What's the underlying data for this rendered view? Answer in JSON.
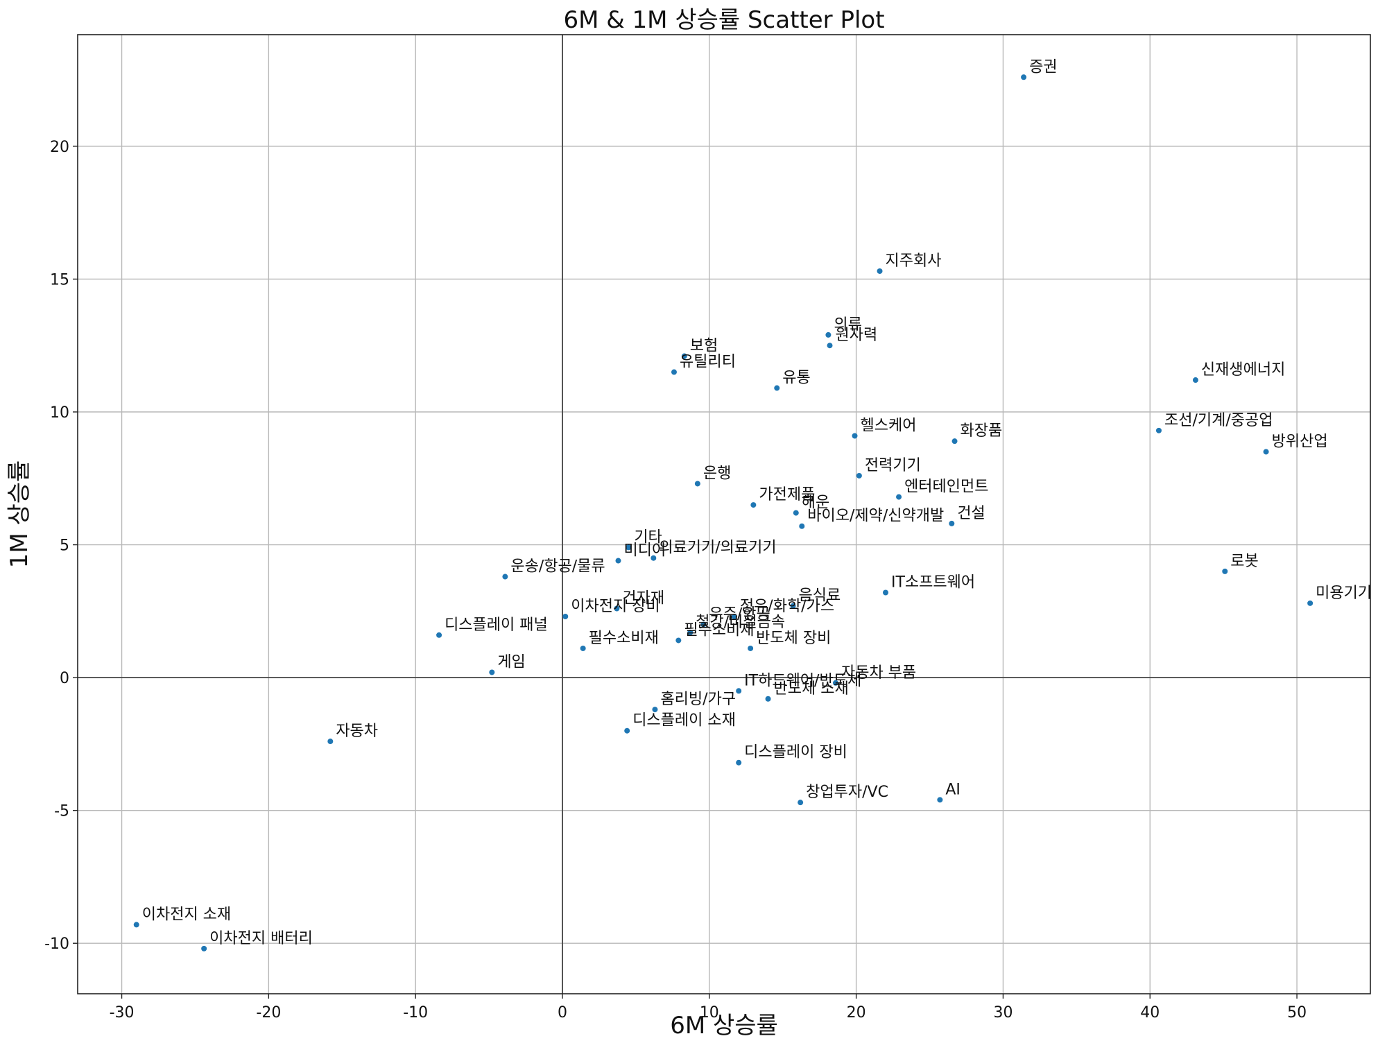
{
  "chart_data": {
    "type": "scatter",
    "title": "6M & 1M 상승률 Scatter Plot",
    "xlabel": "6M 상승률",
    "ylabel": "1M 상승률",
    "xlim": [
      -33,
      55
    ],
    "ylim": [
      -11.9,
      24.2
    ],
    "xticks": [
      -30,
      -20,
      -10,
      0,
      10,
      20,
      30,
      40,
      50
    ],
    "yticks": [
      -10,
      -5,
      0,
      5,
      10,
      15,
      20
    ],
    "grid": true,
    "reference_lines": {
      "x": 0,
      "y": 0
    },
    "point_color": "#1f77b4",
    "points": [
      {
        "label": "증권",
        "x": 31.4,
        "y": 22.6
      },
      {
        "label": "지주회사",
        "x": 21.6,
        "y": 15.3
      },
      {
        "label": "의류",
        "x": 18.1,
        "y": 12.9
      },
      {
        "label": "원자력",
        "x": 18.2,
        "y": 12.5
      },
      {
        "label": "보험",
        "x": 8.3,
        "y": 12.1
      },
      {
        "label": "유틸리티",
        "x": 7.6,
        "y": 11.5
      },
      {
        "label": "유통",
        "x": 14.6,
        "y": 10.9
      },
      {
        "label": "신재생에너지",
        "x": 43.1,
        "y": 11.2
      },
      {
        "label": "헬스케어",
        "x": 19.9,
        "y": 9.1
      },
      {
        "label": "화장품",
        "x": 26.7,
        "y": 8.9
      },
      {
        "label": "조선/기계/중공업",
        "x": 40.6,
        "y": 9.3
      },
      {
        "label": "방위산업",
        "x": 47.9,
        "y": 8.5
      },
      {
        "label": "전력기기",
        "x": 20.2,
        "y": 7.6
      },
      {
        "label": "은행",
        "x": 9.2,
        "y": 7.3
      },
      {
        "label": "엔터테인먼트",
        "x": 22.9,
        "y": 6.8
      },
      {
        "label": "가전제품",
        "x": 13.0,
        "y": 6.5
      },
      {
        "label": "해운",
        "x": 15.9,
        "y": 6.2
      },
      {
        "label": "바이오/제약/신약개발",
        "x": 16.3,
        "y": 5.7
      },
      {
        "label": "건설",
        "x": 26.5,
        "y": 5.8
      },
      {
        "label": "기타",
        "x": 4.5,
        "y": 4.9
      },
      {
        "label": "의료기기/의료기기",
        "x": 6.2,
        "y": 4.5
      },
      {
        "label": "미디어",
        "x": 3.8,
        "y": 4.4
      },
      {
        "label": "운송/항공/물류",
        "x": -3.9,
        "y": 3.8
      },
      {
        "label": "로봇",
        "x": 45.1,
        "y": 4.0
      },
      {
        "label": "IT소프트웨어",
        "x": 22.0,
        "y": 3.2
      },
      {
        "label": "미용기기",
        "x": 50.9,
        "y": 2.8
      },
      {
        "label": "음식료",
        "x": 15.7,
        "y": 2.7
      },
      {
        "label": "건자재",
        "x": 3.7,
        "y": 2.6
      },
      {
        "label": "이차전지 장비",
        "x": 0.2,
        "y": 2.3
      },
      {
        "label": "정유/화학/가스",
        "x": 11.7,
        "y": 2.3
      },
      {
        "label": "우주/항공",
        "x": 9.6,
        "y": 2.0
      },
      {
        "label": "철강/비철금속",
        "x": 8.7,
        "y": 1.7
      },
      {
        "label": "디스플레이 패널",
        "x": -8.4,
        "y": 1.6
      },
      {
        "label": "필수소비재",
        "x": 7.9,
        "y": 1.4
      },
      {
        "label": "반도체 장비",
        "x": 12.8,
        "y": 1.1
      },
      {
        "label": "필수소비재",
        "x": 1.4,
        "y": 1.1
      },
      {
        "label": "게임",
        "x": -4.8,
        "y": 0.2
      },
      {
        "label": "자동차 부품",
        "x": 18.6,
        "y": -0.2
      },
      {
        "label": "IT하드웨어/반도체",
        "x": 12.0,
        "y": -0.5
      },
      {
        "label": "반도체 소재",
        "x": 14.0,
        "y": -0.8
      },
      {
        "label": "홈리빙/가구",
        "x": 6.3,
        "y": -1.2
      },
      {
        "label": "디스플레이 소재",
        "x": 4.4,
        "y": -2.0
      },
      {
        "label": "자동차",
        "x": -15.8,
        "y": -2.4
      },
      {
        "label": "디스플레이 장비",
        "x": 12.0,
        "y": -3.2
      },
      {
        "label": "창업투자/VC",
        "x": 16.2,
        "y": -4.7
      },
      {
        "label": "AI",
        "x": 25.7,
        "y": -4.6
      },
      {
        "label": "이차전지 소재",
        "x": -29.0,
        "y": -9.3
      },
      {
        "label": "이차전지 배터리",
        "x": -24.4,
        "y": -10.2
      }
    ]
  }
}
